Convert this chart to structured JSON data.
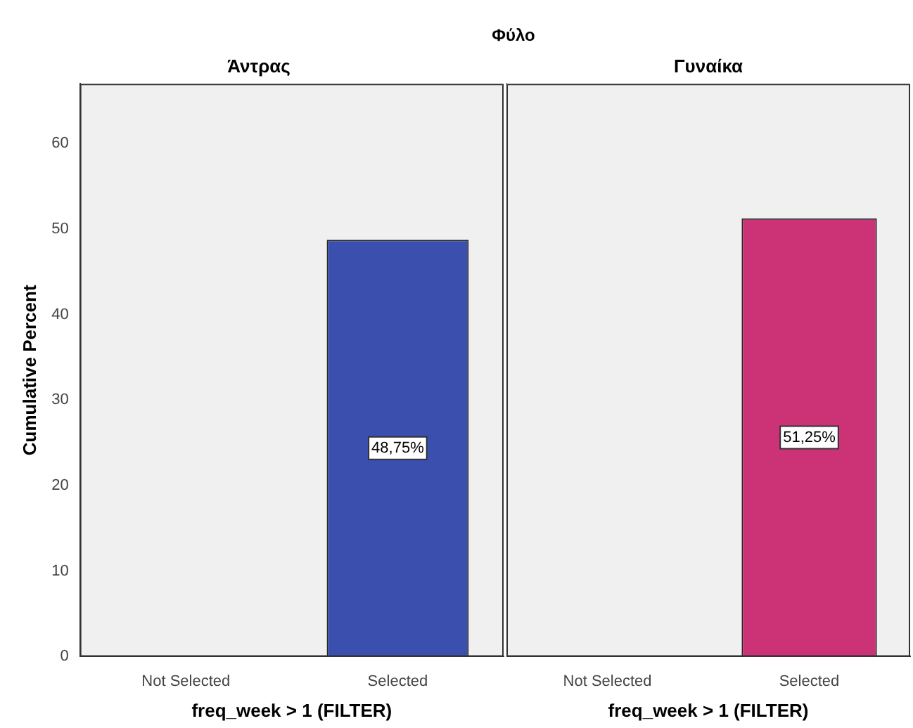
{
  "chart_data": [
    {
      "type": "bar",
      "title": "Άντρας",
      "annotations": [
        "Φύλο"
      ],
      "xlabel": "freq_week > 1 (FILTER)",
      "ylabel": "Cumulative Percent",
      "categories": [
        "Not Selected",
        "Selected"
      ],
      "values": [
        null,
        48.75
      ],
      "value_labels": [
        null,
        "48,75%"
      ],
      "color": "#3a4fae",
      "ylim": [
        0,
        67
      ],
      "yticks": [
        0,
        10,
        20,
        30,
        40,
        50,
        60
      ]
    },
    {
      "type": "bar",
      "title": "Γυναίκα",
      "xlabel": "freq_week > 1 (FILTER)",
      "categories": [
        "Not Selected",
        "Selected"
      ],
      "values": [
        null,
        51.25
      ],
      "value_labels": [
        null,
        "51,25%"
      ],
      "color": "#cc3377",
      "ylim": [
        0,
        67
      ],
      "yticks": [
        0,
        10,
        20,
        30,
        40,
        50,
        60
      ],
      "tick_labels": "x"
    }
  ]
}
